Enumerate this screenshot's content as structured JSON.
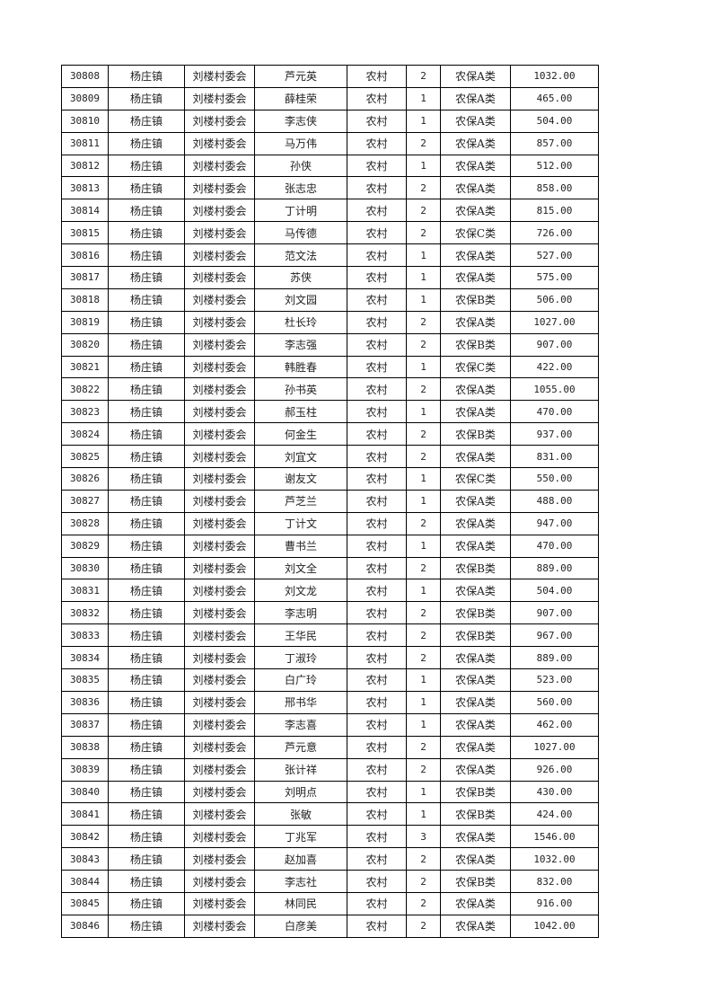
{
  "table": {
    "rows": [
      [
        "30808",
        "杨庄镇",
        "刘楼村委会",
        "芦元英",
        "农村",
        "2",
        "农保A类",
        "1032.00"
      ],
      [
        "30809",
        "杨庄镇",
        "刘楼村委会",
        "薛桂荣",
        "农村",
        "1",
        "农保A类",
        "465.00"
      ],
      [
        "30810",
        "杨庄镇",
        "刘楼村委会",
        "李志侠",
        "农村",
        "1",
        "农保A类",
        "504.00"
      ],
      [
        "30811",
        "杨庄镇",
        "刘楼村委会",
        "马万伟",
        "农村",
        "2",
        "农保A类",
        "857.00"
      ],
      [
        "30812",
        "杨庄镇",
        "刘楼村委会",
        "孙侠",
        "农村",
        "1",
        "农保A类",
        "512.00"
      ],
      [
        "30813",
        "杨庄镇",
        "刘楼村委会",
        "张志忠",
        "农村",
        "2",
        "农保A类",
        "858.00"
      ],
      [
        "30814",
        "杨庄镇",
        "刘楼村委会",
        "丁计明",
        "农村",
        "2",
        "农保A类",
        "815.00"
      ],
      [
        "30815",
        "杨庄镇",
        "刘楼村委会",
        "马传德",
        "农村",
        "2",
        "农保C类",
        "726.00"
      ],
      [
        "30816",
        "杨庄镇",
        "刘楼村委会",
        "范文法",
        "农村",
        "1",
        "农保A类",
        "527.00"
      ],
      [
        "30817",
        "杨庄镇",
        "刘楼村委会",
        "苏侠",
        "农村",
        "1",
        "农保A类",
        "575.00"
      ],
      [
        "30818",
        "杨庄镇",
        "刘楼村委会",
        "刘文园",
        "农村",
        "1",
        "农保B类",
        "506.00"
      ],
      [
        "30819",
        "杨庄镇",
        "刘楼村委会",
        "杜长玲",
        "农村",
        "2",
        "农保A类",
        "1027.00"
      ],
      [
        "30820",
        "杨庄镇",
        "刘楼村委会",
        "李志强",
        "农村",
        "2",
        "农保B类",
        "907.00"
      ],
      [
        "30821",
        "杨庄镇",
        "刘楼村委会",
        "韩胜春",
        "农村",
        "1",
        "农保C类",
        "422.00"
      ],
      [
        "30822",
        "杨庄镇",
        "刘楼村委会",
        "孙书英",
        "农村",
        "2",
        "农保A类",
        "1055.00"
      ],
      [
        "30823",
        "杨庄镇",
        "刘楼村委会",
        "郝玉柱",
        "农村",
        "1",
        "农保A类",
        "470.00"
      ],
      [
        "30824",
        "杨庄镇",
        "刘楼村委会",
        "何金生",
        "农村",
        "2",
        "农保B类",
        "937.00"
      ],
      [
        "30825",
        "杨庄镇",
        "刘楼村委会",
        "刘宜文",
        "农村",
        "2",
        "农保A类",
        "831.00"
      ],
      [
        "30826",
        "杨庄镇",
        "刘楼村委会",
        "谢友文",
        "农村",
        "1",
        "农保C类",
        "550.00"
      ],
      [
        "30827",
        "杨庄镇",
        "刘楼村委会",
        "芦芝兰",
        "农村",
        "1",
        "农保A类",
        "488.00"
      ],
      [
        "30828",
        "杨庄镇",
        "刘楼村委会",
        "丁计文",
        "农村",
        "2",
        "农保A类",
        "947.00"
      ],
      [
        "30829",
        "杨庄镇",
        "刘楼村委会",
        "曹书兰",
        "农村",
        "1",
        "农保A类",
        "470.00"
      ],
      [
        "30830",
        "杨庄镇",
        "刘楼村委会",
        "刘文全",
        "农村",
        "2",
        "农保B类",
        "889.00"
      ],
      [
        "30831",
        "杨庄镇",
        "刘楼村委会",
        "刘文龙",
        "农村",
        "1",
        "农保A类",
        "504.00"
      ],
      [
        "30832",
        "杨庄镇",
        "刘楼村委会",
        "李志明",
        "农村",
        "2",
        "农保B类",
        "907.00"
      ],
      [
        "30833",
        "杨庄镇",
        "刘楼村委会",
        "王华民",
        "农村",
        "2",
        "农保B类",
        "967.00"
      ],
      [
        "30834",
        "杨庄镇",
        "刘楼村委会",
        "丁淑玲",
        "农村",
        "2",
        "农保A类",
        "889.00"
      ],
      [
        "30835",
        "杨庄镇",
        "刘楼村委会",
        "白广玲",
        "农村",
        "1",
        "农保A类",
        "523.00"
      ],
      [
        "30836",
        "杨庄镇",
        "刘楼村委会",
        "邢书华",
        "农村",
        "1",
        "农保A类",
        "560.00"
      ],
      [
        "30837",
        "杨庄镇",
        "刘楼村委会",
        "李志喜",
        "农村",
        "1",
        "农保A类",
        "462.00"
      ],
      [
        "30838",
        "杨庄镇",
        "刘楼村委会",
        "芦元意",
        "农村",
        "2",
        "农保A类",
        "1027.00"
      ],
      [
        "30839",
        "杨庄镇",
        "刘楼村委会",
        "张计祥",
        "农村",
        "2",
        "农保A类",
        "926.00"
      ],
      [
        "30840",
        "杨庄镇",
        "刘楼村委会",
        "刘明点",
        "农村",
        "1",
        "农保B类",
        "430.00"
      ],
      [
        "30841",
        "杨庄镇",
        "刘楼村委会",
        "张敏",
        "农村",
        "1",
        "农保B类",
        "424.00"
      ],
      [
        "30842",
        "杨庄镇",
        "刘楼村委会",
        "丁兆军",
        "农村",
        "3",
        "农保A类",
        "1546.00"
      ],
      [
        "30843",
        "杨庄镇",
        "刘楼村委会",
        "赵加喜",
        "农村",
        "2",
        "农保A类",
        "1032.00"
      ],
      [
        "30844",
        "杨庄镇",
        "刘楼村委会",
        "李志社",
        "农村",
        "2",
        "农保B类",
        "832.00"
      ],
      [
        "30845",
        "杨庄镇",
        "刘楼村委会",
        "林同民",
        "农村",
        "2",
        "农保A类",
        "916.00"
      ],
      [
        "30846",
        "杨庄镇",
        "刘楼村委会",
        "白彦美",
        "农村",
        "2",
        "农保A类",
        "1042.00"
      ]
    ]
  }
}
